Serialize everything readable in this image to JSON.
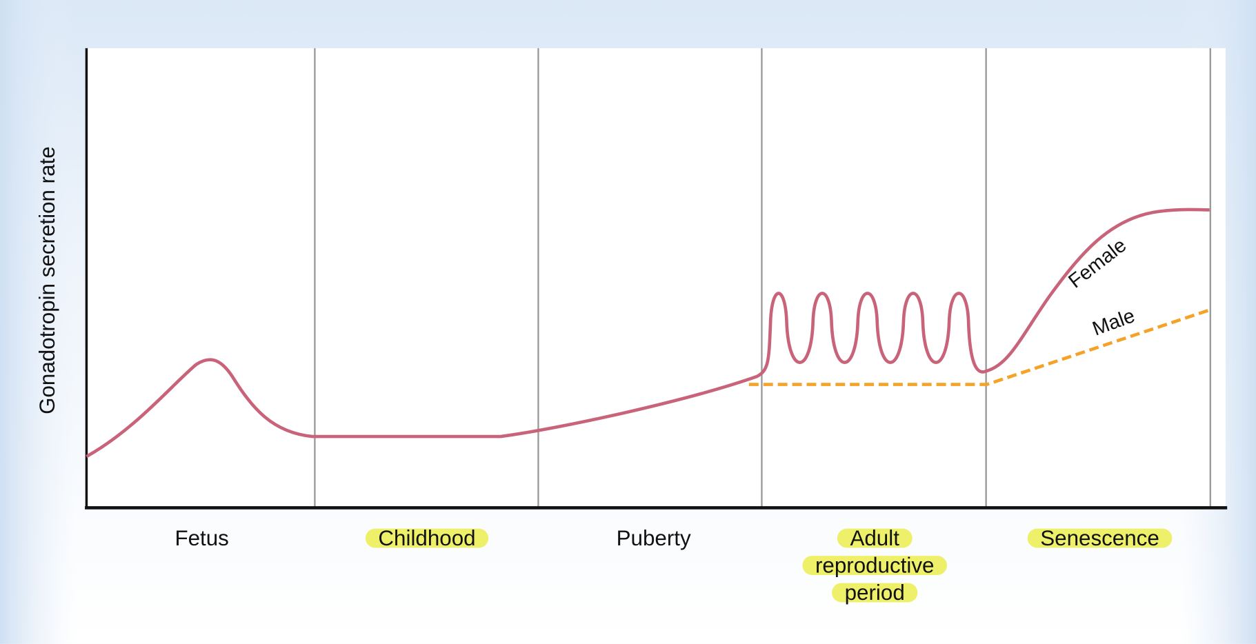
{
  "y_axis_label": "Gonadotropin secretion rate",
  "periods": [
    {
      "lines": [
        "Fetus"
      ],
      "highlighted": false
    },
    {
      "lines": [
        "Childhood"
      ],
      "highlighted": true
    },
    {
      "lines": [
        "Puberty"
      ],
      "highlighted": false
    },
    {
      "lines": [
        "Adult",
        "reproductive",
        "period"
      ],
      "highlighted": true
    },
    {
      "lines": [
        "Senescence"
      ],
      "highlighted": true
    }
  ],
  "curves": [
    {
      "label": "Female",
      "color": "#c9637a"
    },
    {
      "label": "Male",
      "color": "#f4a228"
    }
  ]
}
